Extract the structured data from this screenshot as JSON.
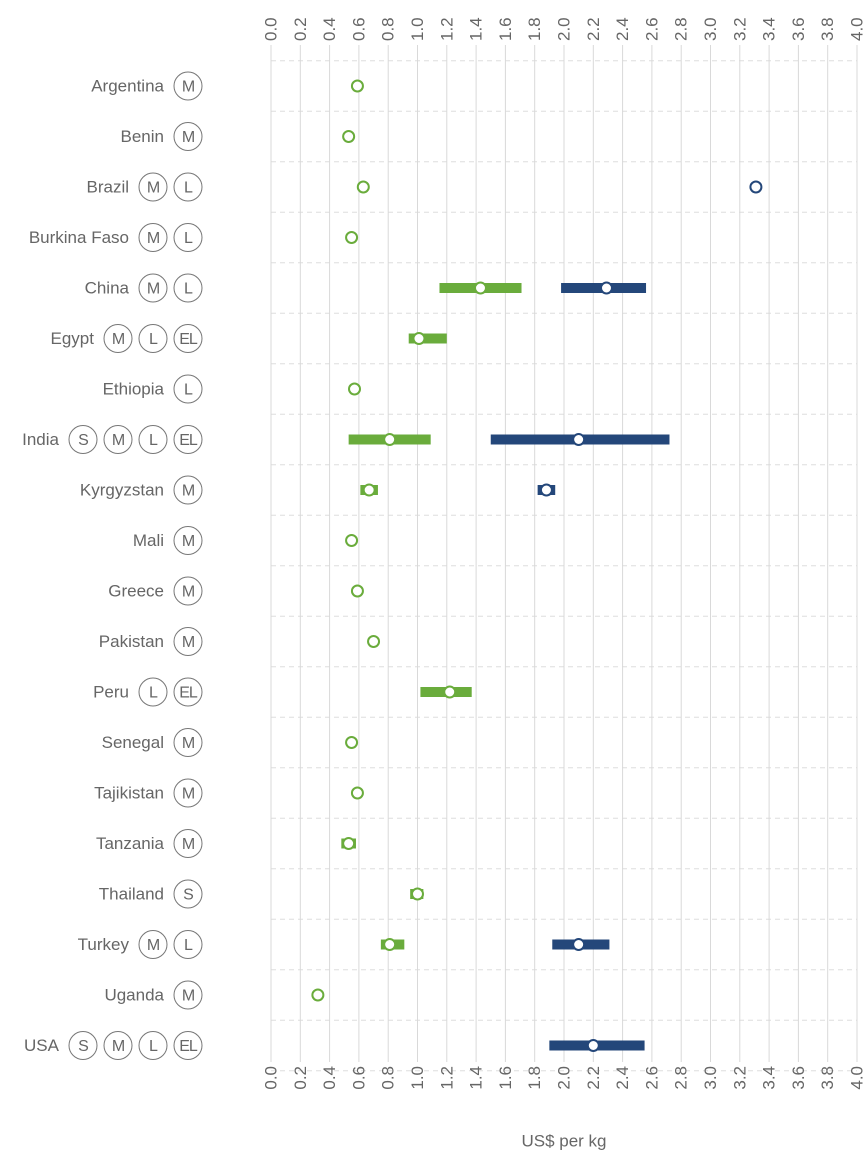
{
  "chart_data": {
    "type": "range-dot",
    "categories": [
      "Argentina",
      "Benin",
      "Brazil",
      "Burkina Faso",
      "China",
      "Egypt",
      "Ethiopia",
      "India",
      "Kyrgyzstan",
      "Mali",
      "Greece",
      "Pakistan",
      "Peru",
      "Senegal",
      "Tajikistan",
      "Tanzania",
      "Thailand",
      "Turkey",
      "Uganda",
      "USA"
    ],
    "badges": [
      [
        "M"
      ],
      [
        "M"
      ],
      [
        "M",
        "L"
      ],
      [
        "M",
        "L"
      ],
      [
        "M",
        "L"
      ],
      [
        "M",
        "L",
        "EL"
      ],
      [
        "L"
      ],
      [
        "S",
        "M",
        "L",
        "EL"
      ],
      [
        "M"
      ],
      [
        "M"
      ],
      [
        "M"
      ],
      [
        "M"
      ],
      [
        "L",
        "EL"
      ],
      [
        "M"
      ],
      [
        "M"
      ],
      [
        "M"
      ],
      [
        "S"
      ],
      [
        "M",
        "L"
      ],
      [
        "M"
      ],
      [
        "S",
        "M",
        "L",
        "EL"
      ]
    ],
    "series": [
      {
        "color": "#6aac3c",
        "values": [
          0.59,
          0.53,
          0.63,
          0.55,
          1.43,
          1.01,
          0.57,
          0.81,
          0.67,
          0.55,
          0.59,
          0.7,
          1.22,
          0.55,
          0.59,
          0.53,
          1.0,
          0.81,
          0.32,
          null
        ],
        "low": [
          null,
          null,
          null,
          null,
          1.15,
          0.94,
          null,
          0.53,
          0.61,
          null,
          null,
          null,
          1.02,
          null,
          null,
          0.48,
          0.95,
          0.75,
          null,
          null
        ],
        "high": [
          null,
          null,
          null,
          null,
          1.71,
          1.2,
          null,
          1.09,
          0.73,
          null,
          null,
          null,
          1.37,
          null,
          null,
          0.58,
          1.04,
          0.91,
          null,
          null
        ]
      },
      {
        "color": "#24477a",
        "values": [
          null,
          null,
          3.31,
          null,
          2.29,
          null,
          null,
          2.1,
          1.88,
          null,
          null,
          null,
          null,
          null,
          null,
          null,
          null,
          2.1,
          null,
          2.2
        ],
        "low": [
          null,
          null,
          null,
          null,
          1.98,
          null,
          null,
          1.5,
          1.82,
          null,
          null,
          null,
          null,
          null,
          null,
          null,
          null,
          1.92,
          null,
          1.9
        ],
        "high": [
          null,
          null,
          null,
          null,
          2.56,
          null,
          null,
          2.72,
          1.94,
          null,
          null,
          null,
          null,
          null,
          null,
          null,
          null,
          2.31,
          null,
          2.55
        ]
      }
    ],
    "xlabel": "US$ per kg",
    "xlim": [
      0,
      4
    ],
    "xticks": [
      {
        "value": 0,
        "label": "0.0"
      },
      0.2,
      0.4,
      0.6,
      0.8,
      {
        "value": 1,
        "label": "1.0"
      },
      1.2,
      1.4,
      1.6,
      1.8,
      {
        "value": 2,
        "label": "2.0"
      },
      2.2,
      2.4,
      2.6,
      2.8,
      {
        "value": 3,
        "label": "3.0"
      },
      3.2,
      3.4,
      3.6,
      3.8,
      {
        "value": 4,
        "label": "4.0"
      }
    ],
    "grid": true
  }
}
